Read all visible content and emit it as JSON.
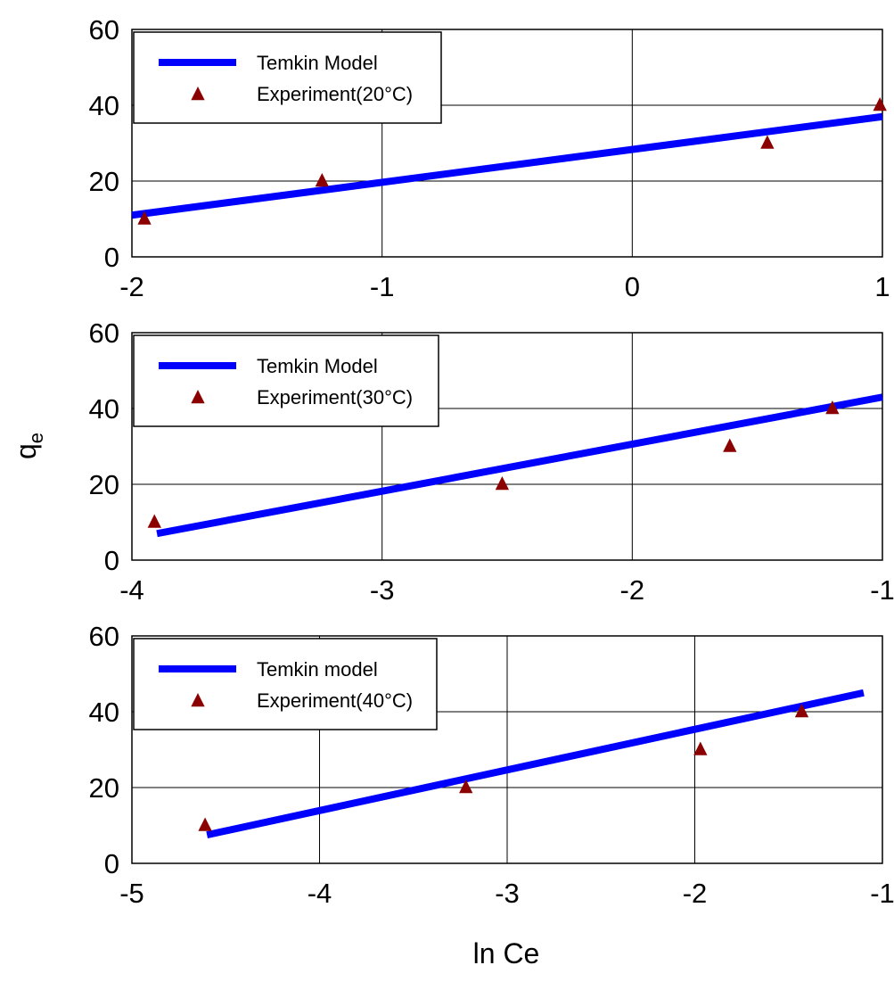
{
  "figure": {
    "ylabel_base": "q",
    "ylabel_sub": "e",
    "xlabel": "ln Ce"
  },
  "colors": {
    "model_line": "#0000ff",
    "experiment_marker": "#8b0000",
    "grid": "#000000",
    "frame": "#000000"
  },
  "chart_data": [
    {
      "type": "scatter",
      "title": "",
      "xlim": [
        -2,
        1
      ],
      "ylim": [
        0,
        60
      ],
      "xticks": [
        "-2",
        "-1",
        "0",
        "1"
      ],
      "yticks": [
        "0",
        "20",
        "40",
        "60"
      ],
      "xtick_values": [
        -2,
        -1,
        0,
        1
      ],
      "ytick_values": [
        0,
        20,
        40,
        60
      ],
      "grid": true,
      "legend_position": "top-left",
      "series": [
        {
          "name": "Temkin Model",
          "kind": "line",
          "x": [
            -2.0,
            1.0
          ],
          "y": [
            11.0,
            37.0
          ]
        },
        {
          "name": "Experiment(20°C)",
          "kind": "marker",
          "x": [
            -1.95,
            -1.24,
            0.54,
            0.99
          ],
          "y": [
            10,
            20,
            30,
            40
          ]
        }
      ]
    },
    {
      "type": "scatter",
      "title": "",
      "xlim": [
        -4,
        -1
      ],
      "ylim": [
        0,
        60
      ],
      "xticks": [
        "-4",
        "-3",
        "-2",
        "-1"
      ],
      "yticks": [
        "0",
        "20",
        "40",
        "60"
      ],
      "xtick_values": [
        -4,
        -3,
        -2,
        -1
      ],
      "ytick_values": [
        0,
        20,
        40,
        60
      ],
      "grid": true,
      "legend_position": "top-left",
      "series": [
        {
          "name": "Temkin Model",
          "kind": "line",
          "x": [
            -3.9,
            -1.0
          ],
          "y": [
            7.0,
            43.0
          ]
        },
        {
          "name": "Experiment(30°C)",
          "kind": "marker",
          "x": [
            -3.91,
            -2.52,
            -1.61,
            -1.2
          ],
          "y": [
            10,
            20,
            30,
            40
          ]
        }
      ]
    },
    {
      "type": "scatter",
      "title": "",
      "xlim": [
        -5,
        -1
      ],
      "ylim": [
        0,
        60
      ],
      "xticks": [
        "-5",
        "-4",
        "-3",
        "-2",
        "-1"
      ],
      "yticks": [
        "0",
        "20",
        "40",
        "60"
      ],
      "xtick_values": [
        -5,
        -4,
        -3,
        -2,
        -1
      ],
      "ytick_values": [
        0,
        20,
        40,
        60
      ],
      "grid": true,
      "legend_position": "top-left",
      "series": [
        {
          "name": "Temkin model",
          "kind": "line",
          "x": [
            -4.6,
            -1.1
          ],
          "y": [
            7.5,
            45.0
          ]
        },
        {
          "name": "Experiment(40°C)",
          "kind": "marker",
          "x": [
            -4.61,
            -3.22,
            -1.97,
            -1.43
          ],
          "y": [
            10,
            20,
            30,
            40
          ]
        }
      ]
    }
  ]
}
